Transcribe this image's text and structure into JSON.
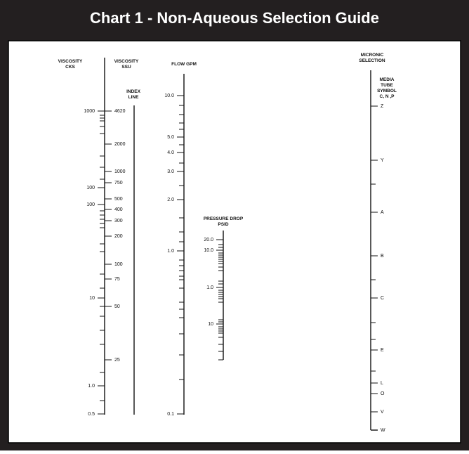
{
  "header": {
    "title": "Chart 1 - Non-Aqueous Selection Guide"
  },
  "scales": [
    {
      "title": [
        "VISCOSITY",
        "CKS"
      ],
      "labels": [
        "1000",
        "100",
        "100",
        "10",
        "1.0",
        "0.5"
      ]
    },
    {
      "title": [
        "VISCOSITY",
        "SSU"
      ],
      "labels": [
        "4620",
        "2000",
        "1000",
        "750",
        "500",
        "400",
        "300",
        "200",
        "100",
        "75",
        "50",
        "25"
      ]
    },
    {
      "title": [
        "INDEX",
        "LINE"
      ],
      "labels": []
    },
    {
      "title": [
        "FLOW GPM"
      ],
      "labels": [
        "10.0",
        "5.0",
        "4.0",
        "3.0",
        "2.0",
        "1.0",
        "0.1"
      ]
    },
    {
      "title": [
        "PRESSURE DROP",
        "PSID"
      ],
      "labels": [
        "20.0",
        "10.0",
        "1.0",
        "10"
      ]
    },
    {
      "title": [
        "MICRONIC",
        "SELECTION"
      ],
      "labels": []
    },
    {
      "title": [
        "MEDIA",
        "TUBE",
        "SYMBOL",
        "C, N ,P"
      ],
      "labels": [
        "Z",
        "Y",
        "A",
        "B",
        "C",
        "E",
        "L",
        "O",
        "V",
        "W"
      ]
    }
  ]
}
